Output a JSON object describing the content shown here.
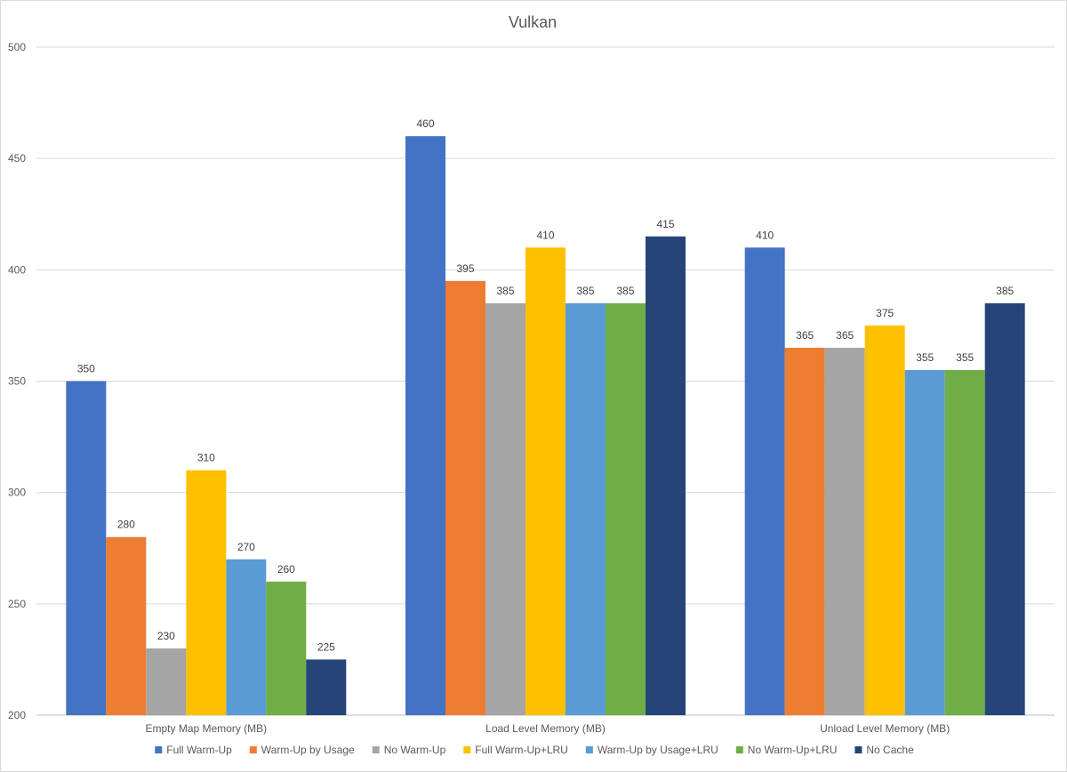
{
  "chart_data": {
    "type": "bar",
    "title": "Vulkan",
    "xlabel": "",
    "ylabel": "",
    "ylim": [
      200,
      500
    ],
    "yticks": [
      200,
      250,
      300,
      350,
      400,
      450,
      500
    ],
    "grid": true,
    "legend_position": "bottom",
    "categories": [
      "Empty Map Memory (MB)",
      "Load Level Memory (MB)",
      "Unload Level Memory (MB)"
    ],
    "series": [
      {
        "name": "Full Warm-Up",
        "color": "#4472c4",
        "values": [
          350,
          460,
          410
        ]
      },
      {
        "name": "Warm-Up by Usage",
        "color": "#ed7d31",
        "values": [
          280,
          395,
          365
        ]
      },
      {
        "name": "No Warm-Up",
        "color": "#a5a5a5",
        "values": [
          230,
          385,
          365
        ]
      },
      {
        "name": "Full Warm-Up+LRU",
        "color": "#ffc000",
        "values": [
          310,
          410,
          375
        ]
      },
      {
        "name": "Warm-Up by Usage+LRU",
        "color": "#5b9bd5",
        "values": [
          270,
          385,
          355
        ]
      },
      {
        "name": "No Warm-Up+LRU",
        "color": "#70ad47",
        "values": [
          260,
          385,
          355
        ]
      },
      {
        "name": "No Cache",
        "color": "#264478",
        "values": [
          225,
          415,
          385
        ]
      }
    ]
  }
}
